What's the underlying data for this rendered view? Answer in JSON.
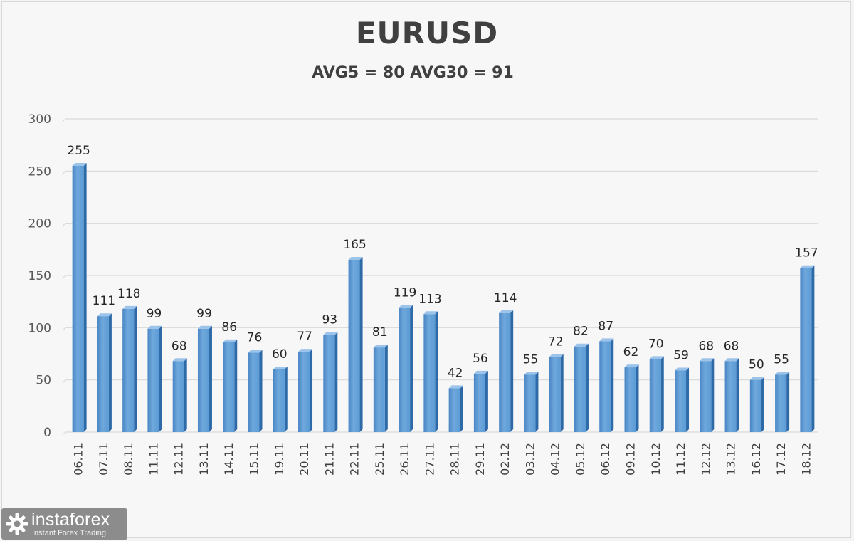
{
  "chart_data": {
    "type": "bar",
    "title": "EURUSD",
    "subtitle": "AVG5 = 80 AVG30 = 91",
    "categories": [
      "06.11",
      "07.11",
      "08.11",
      "11.11",
      "12.11",
      "13.11",
      "14.11",
      "15.11",
      "19.11",
      "20.11",
      "21.11",
      "22.11",
      "25.11",
      "26.11",
      "27.11",
      "28.11",
      "29.11",
      "02.12",
      "03.12",
      "04.12",
      "05.12",
      "06.12",
      "09.12",
      "10.12",
      "11.12",
      "12.12",
      "13.12",
      "16.12",
      "17.12",
      "18.12"
    ],
    "values": [
      255,
      111,
      118,
      99,
      68,
      99,
      86,
      76,
      60,
      77,
      93,
      165,
      81,
      119,
      113,
      42,
      56,
      114,
      55,
      72,
      82,
      87,
      62,
      70,
      59,
      68,
      68,
      50,
      55,
      157
    ],
    "ylim": [
      0,
      300
    ],
    "yticks": [
      0,
      50,
      100,
      150,
      200,
      250,
      300
    ],
    "grid": true,
    "bar_color": "#5b9bd5",
    "data_labels": true
  },
  "logo": {
    "name": "instaforex",
    "tagline": "Instant Forex Trading"
  }
}
